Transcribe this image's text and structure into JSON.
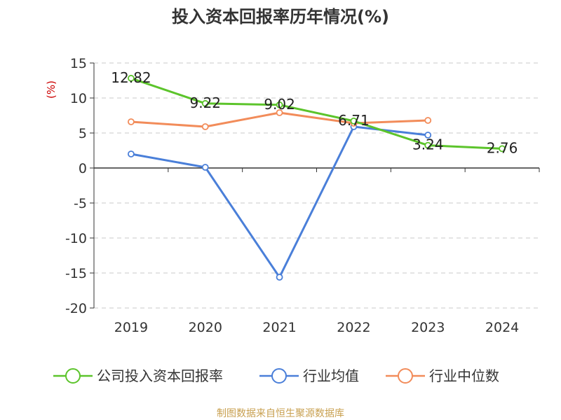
{
  "chart_data": {
    "type": "line",
    "title": "投入资本回报率历年情况(%)",
    "ylabel": "(%)",
    "xlabel": "",
    "categories": [
      "2019",
      "2020",
      "2021",
      "2022",
      "2023",
      "2024"
    ],
    "ylim": [
      -20,
      15
    ],
    "yticks": [
      15,
      10,
      5,
      0,
      -5,
      -10,
      -15,
      -20
    ],
    "grid": true,
    "legend_position": "bottom",
    "series": [
      {
        "name": "公司投入资本回报率",
        "color": "#5cc42b",
        "values": [
          12.82,
          9.22,
          9.02,
          6.71,
          3.24,
          2.76
        ],
        "labels": [
          "12.82",
          "9.22",
          "9.02",
          "6.71",
          "3.24",
          "2.76"
        ]
      },
      {
        "name": "行业均值",
        "color": "#4a7fd9",
        "values": [
          2.0,
          0.1,
          -15.6,
          5.9,
          4.7,
          null
        ]
      },
      {
        "name": "行业中位数",
        "color": "#f28c5a",
        "values": [
          6.6,
          5.9,
          7.9,
          6.4,
          6.8,
          null
        ]
      }
    ],
    "source": "制图数据来自恒生聚源数据库"
  }
}
